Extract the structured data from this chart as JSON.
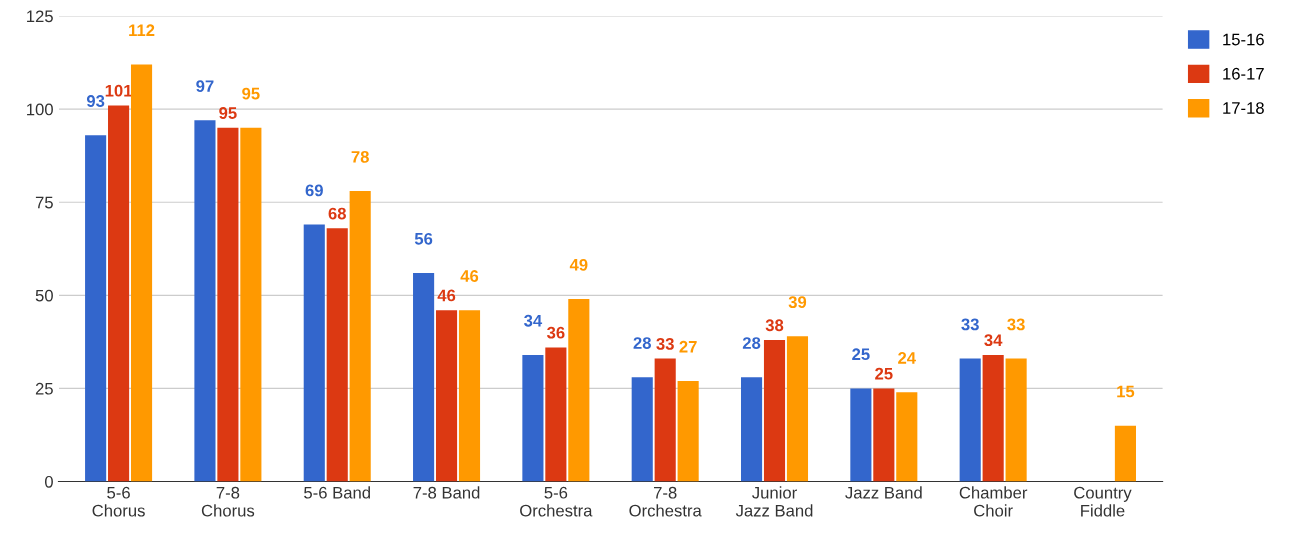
{
  "chart_data": {
    "type": "bar",
    "categories": [
      "5-6\nChorus",
      "7-8\nChorus",
      "5-6 Band",
      "7-8 Band",
      "5-6\nOrchestra",
      "7-8\nOrchestra",
      "Junior\nJazz Band",
      "Jazz Band",
      "Chamber\nChoir",
      "Country\nFiddle"
    ],
    "series": [
      {
        "name": "15-16",
        "color": "#3366cc",
        "values": [
          93,
          97,
          69,
          56,
          34,
          28,
          28,
          25,
          33,
          null
        ]
      },
      {
        "name": "16-17",
        "color": "#dc3912",
        "values": [
          101,
          95,
          68,
          46,
          36,
          33,
          38,
          25,
          34,
          null
        ]
      },
      {
        "name": "17-18",
        "color": "#ff9900",
        "values": [
          112,
          95,
          78,
          46,
          49,
          27,
          39,
          24,
          33,
          15
        ]
      }
    ],
    "ylim": [
      0,
      125
    ],
    "yticks": [
      0,
      25,
      50,
      75,
      100,
      125
    ],
    "grid": "y",
    "legend": "top right",
    "data_labels": true
  }
}
